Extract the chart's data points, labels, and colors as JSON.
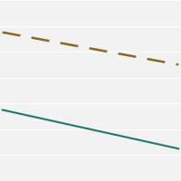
{
  "line1": {
    "x": [
      0,
      7
    ],
    "y": [
      23,
      18
    ],
    "color": "#8B6914",
    "linestyle": "dashed",
    "linewidth": 1.8,
    "dashes": [
      8,
      5
    ]
  },
  "line2": {
    "x": [
      0,
      7
    ],
    "y": [
      11,
      5
    ],
    "color": "#1A7A6E",
    "linestyle": "solid",
    "linewidth": 1.5
  },
  "ylim": [
    0,
    28
  ],
  "xlim": [
    -0.1,
    7.1
  ],
  "background_color": "#f2f2f2",
  "grid_color": "#ffffff",
  "grid_linewidth": 0.8,
  "n_gridlines": 7
}
